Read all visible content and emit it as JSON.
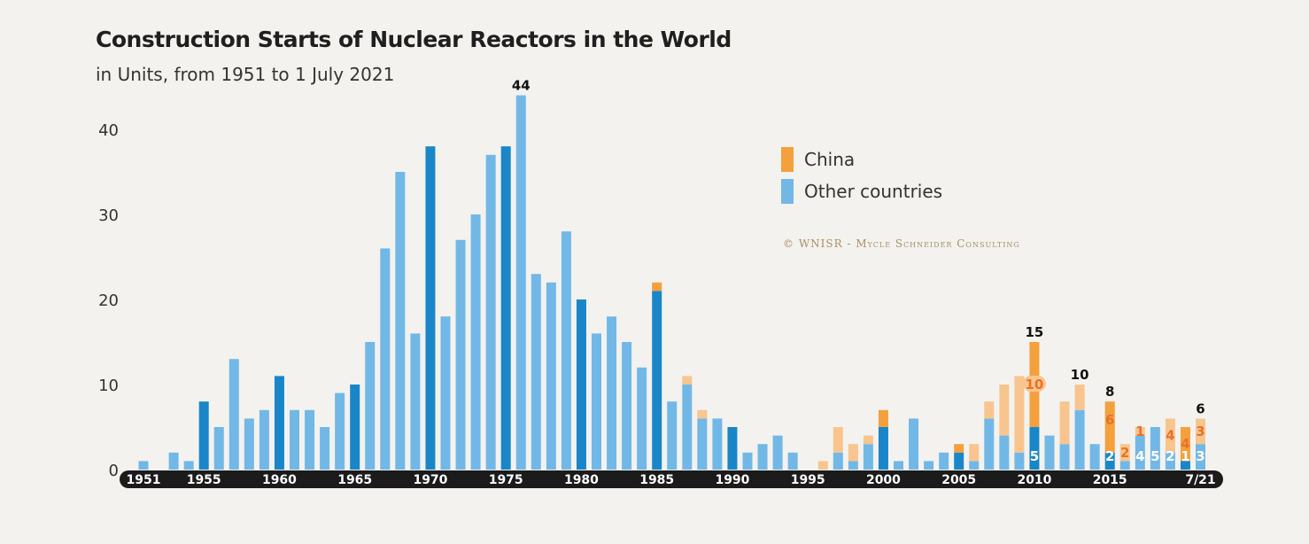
{
  "header": {
    "title": "Construction Starts of Nuclear Reactors in the World",
    "subtitle": "in Units, from 1951 to 1 July 2021"
  },
  "legend": {
    "china_label": "China",
    "other_label": "Other countries"
  },
  "credit": "© WNISR - Mycle Schneider Consulting",
  "colors": {
    "other": "#72b8e6",
    "other_highlight": "#1a86c8",
    "china": "#f4a03c",
    "china_light": "#f8c58f",
    "axis_band": "#1b1b1b"
  },
  "chart_data": {
    "type": "bar",
    "stacked": true,
    "title": "Construction Starts of Nuclear Reactors in the World",
    "subtitle": "in Units, from 1951 to 1 July 2021",
    "ylim": [
      0,
      44
    ],
    "yticks": [
      0,
      10,
      20,
      30,
      40
    ],
    "xtick_labels": [
      {
        "year": 1951,
        "label": "1951"
      },
      {
        "year": 1955,
        "label": "1955"
      },
      {
        "year": 1960,
        "label": "1960"
      },
      {
        "year": 1965,
        "label": "1965"
      },
      {
        "year": 1970,
        "label": "1970"
      },
      {
        "year": 1975,
        "label": "1975"
      },
      {
        "year": 1980,
        "label": "1980"
      },
      {
        "year": 1985,
        "label": "1985"
      },
      {
        "year": 1990,
        "label": "1990"
      },
      {
        "year": 1995,
        "label": "1995"
      },
      {
        "year": 2000,
        "label": "2000"
      },
      {
        "year": 2005,
        "label": "2005"
      },
      {
        "year": 2010,
        "label": "2010"
      },
      {
        "year": 2015,
        "label": "2015"
      },
      {
        "year": 2021,
        "label": "7/21"
      }
    ],
    "categories": [
      1951,
      1952,
      1953,
      1954,
      1955,
      1956,
      1957,
      1958,
      1959,
      1960,
      1961,
      1962,
      1963,
      1964,
      1965,
      1966,
      1967,
      1968,
      1969,
      1970,
      1971,
      1972,
      1973,
      1974,
      1975,
      1976,
      1977,
      1978,
      1979,
      1980,
      1981,
      1982,
      1983,
      1984,
      1985,
      1986,
      1987,
      1988,
      1989,
      1990,
      1991,
      1992,
      1993,
      1994,
      1995,
      1996,
      1997,
      1998,
      1999,
      2000,
      2001,
      2002,
      2003,
      2004,
      2005,
      2006,
      2007,
      2008,
      2009,
      2010,
      2011,
      2012,
      2013,
      2014,
      2015,
      2016,
      2017,
      2018,
      2019,
      2020,
      2021
    ],
    "highlight_years": [
      1955,
      1960,
      1965,
      1970,
      1975,
      1980,
      1985,
      1990,
      1995,
      2000,
      2005,
      2010,
      2015,
      2020
    ],
    "series": [
      {
        "name": "Other countries",
        "values": [
          1,
          0,
          2,
          1,
          8,
          5,
          13,
          6,
          7,
          11,
          7,
          7,
          5,
          9,
          10,
          15,
          26,
          35,
          16,
          38,
          18,
          27,
          30,
          37,
          38,
          44,
          23,
          22,
          28,
          20,
          16,
          18,
          15,
          12,
          21,
          8,
          10,
          6,
          6,
          5,
          2,
          3,
          4,
          2,
          0,
          0,
          2,
          1,
          3,
          5,
          1,
          6,
          1,
          2,
          2,
          1,
          6,
          4,
          2,
          5,
          4,
          3,
          7,
          3,
          2,
          1,
          4,
          5,
          2,
          1,
          3
        ]
      },
      {
        "name": "China",
        "values": [
          0,
          0,
          0,
          0,
          0,
          0,
          0,
          0,
          0,
          0,
          0,
          0,
          0,
          0,
          0,
          0,
          0,
          0,
          0,
          0,
          0,
          0,
          0,
          0,
          0,
          0,
          0,
          0,
          0,
          0,
          0,
          0,
          0,
          0,
          1,
          0,
          1,
          1,
          0,
          0,
          0,
          0,
          0,
          0,
          0,
          1,
          3,
          2,
          1,
          2,
          0,
          0,
          0,
          0,
          1,
          2,
          2,
          6,
          9,
          10,
          0,
          5,
          3,
          0,
          6,
          2,
          1,
          0,
          4,
          4,
          3
        ]
      }
    ],
    "annotations": {
      "totals": [
        {
          "year": 1976,
          "label": "44"
        },
        {
          "year": 2010,
          "label": "15"
        },
        {
          "year": 2013,
          "label": "10"
        },
        {
          "year": 2015,
          "label": "8"
        },
        {
          "year": 2021,
          "label": "6"
        }
      ],
      "china_values": [
        {
          "year": 2010,
          "label": "10"
        },
        {
          "year": 2015,
          "label": "6"
        },
        {
          "year": 2016,
          "label": "2"
        },
        {
          "year": 2017,
          "label": "1"
        },
        {
          "year": 2019,
          "label": "4"
        },
        {
          "year": 2020,
          "label": "4"
        },
        {
          "year": 2021,
          "label": "3"
        }
      ],
      "other_values": [
        {
          "year": 2010,
          "label": "5"
        },
        {
          "year": 2015,
          "label": "2"
        },
        {
          "year": 2017,
          "label": "4"
        },
        {
          "year": 2018,
          "label": "5"
        },
        {
          "year": 2019,
          "label": "2"
        },
        {
          "year": 2020,
          "label": "1"
        },
        {
          "year": 2021,
          "label": "3"
        }
      ]
    }
  }
}
